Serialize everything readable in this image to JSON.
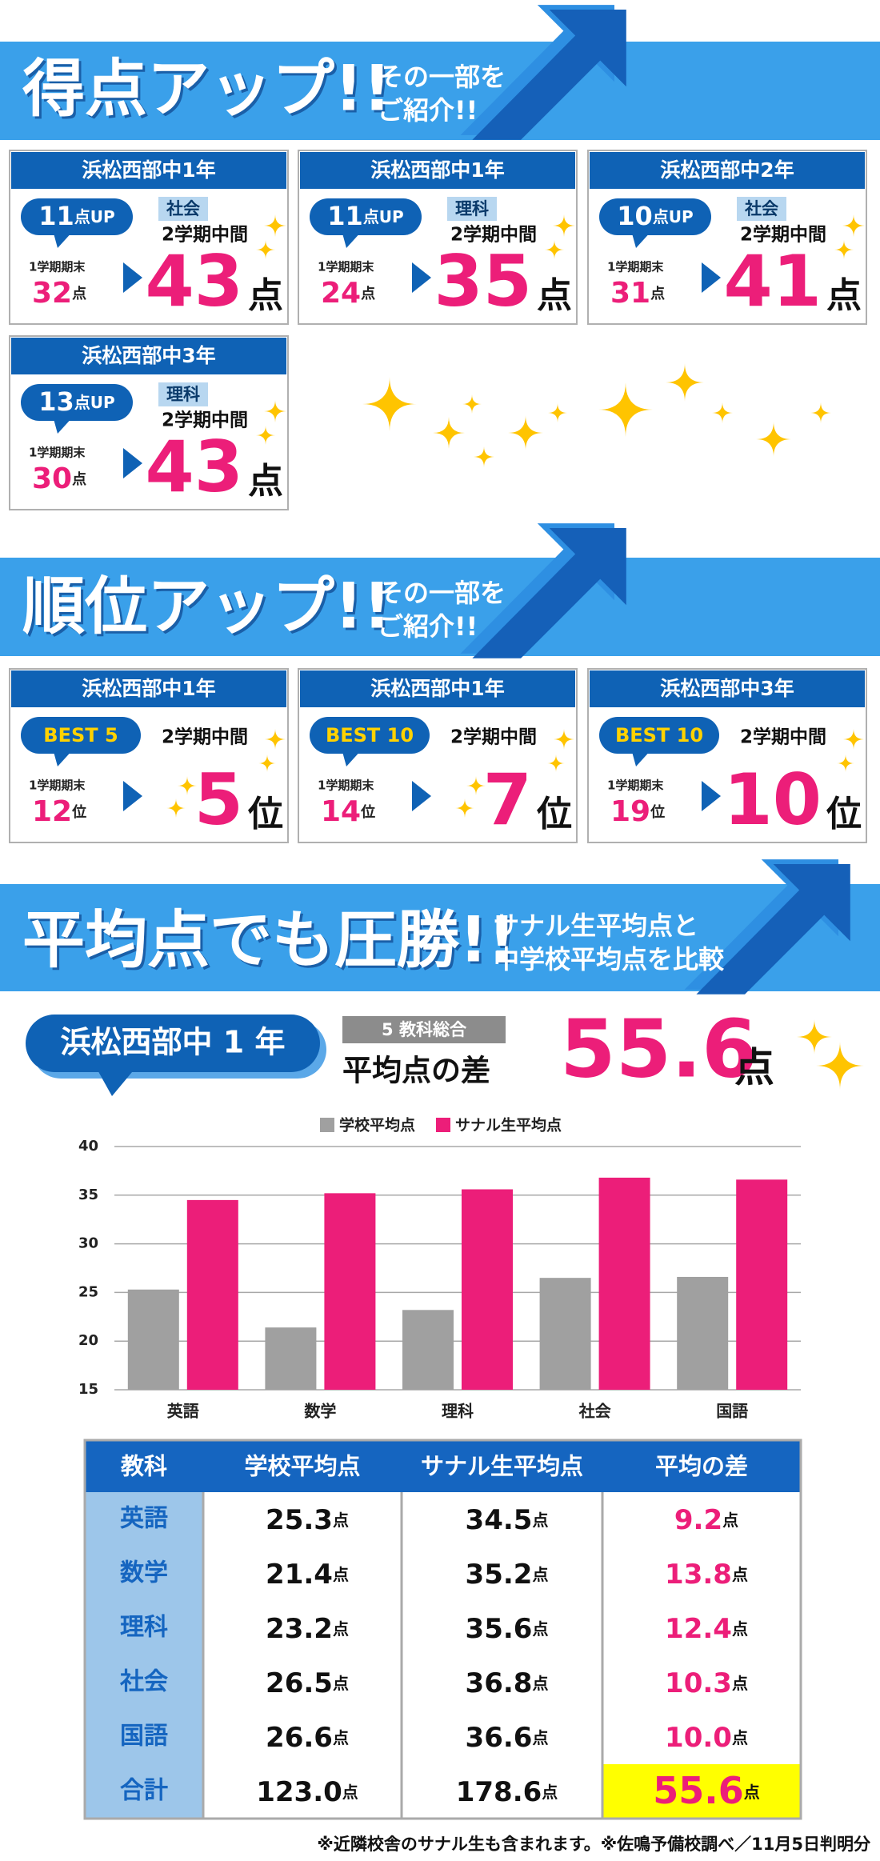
{
  "score_section": {
    "title": "得点アップ!!",
    "subtitle": [
      "その一部を",
      "ご紹介!!"
    ],
    "cards": [
      {
        "school": "浜松西部中1年",
        "up": 11,
        "subject": "社会",
        "term": "2学期中間",
        "before_label": "1学期期末",
        "before": 32,
        "after": 43
      },
      {
        "school": "浜松西部中1年",
        "up": 11,
        "subject": "理科",
        "term": "2学期中間",
        "before_label": "1学期期末",
        "before": 24,
        "after": 35
      },
      {
        "school": "浜松西部中2年",
        "up": 10,
        "subject": "社会",
        "term": "2学期中間",
        "before_label": "1学期期末",
        "before": 31,
        "after": 41
      },
      {
        "school": "浜松西部中3年",
        "up": 13,
        "subject": "理科",
        "term": "2学期中間",
        "before_label": "1学期期末",
        "before": 30,
        "after": 43
      }
    ]
  },
  "units": {
    "point": "点",
    "up": "点UP",
    "rank": "位"
  },
  "rank_section": {
    "title": "順位アップ!!",
    "subtitle": [
      "その一部を",
      "ご紹介!!"
    ],
    "cards": [
      {
        "school": "浜松西部中1年",
        "badge": "BEST 5",
        "term": "2学期中間",
        "before_label": "1学期期末",
        "before": 12,
        "after": 5
      },
      {
        "school": "浜松西部中1年",
        "badge": "BEST 10",
        "term": "2学期中間",
        "before_label": "1学期期末",
        "before": 14,
        "after": 7
      },
      {
        "school": "浜松西部中3年",
        "badge": "BEST 10",
        "term": "2学期中間",
        "before_label": "1学期期末",
        "before": 19,
        "after": 10
      }
    ]
  },
  "average_section": {
    "title": "平均点でも圧勝!!",
    "subtitle": [
      "サナル生平均点と",
      "中学校平均点を比較"
    ],
    "school": "浜松西部中 1 年",
    "badge": "5 教科総合",
    "label": "平均点の差",
    "value": 55.6
  },
  "chart_data": {
    "type": "bar",
    "categories": [
      "英語",
      "数学",
      "理科",
      "社会",
      "国語"
    ],
    "series": [
      {
        "name": "学校平均点",
        "color": "#a0a0a0",
        "values": [
          25.3,
          21.4,
          23.2,
          26.5,
          26.6
        ]
      },
      {
        "name": "サナル生平均点",
        "color": "#ec1e79",
        "values": [
          34.5,
          35.2,
          35.6,
          36.8,
          36.6
        ]
      }
    ],
    "ylim": [
      15,
      40
    ],
    "yticks": [
      15,
      20,
      25,
      30,
      35,
      40
    ],
    "grid": true,
    "legend": "top"
  },
  "table": {
    "header": [
      "教科",
      "学校平均点",
      "サナル生平均点",
      "平均の差"
    ],
    "rows": [
      [
        "英語",
        "25.3",
        "34.5",
        "9.2"
      ],
      [
        "数学",
        "21.4",
        "35.2",
        "13.8"
      ],
      [
        "理科",
        "23.2",
        "35.6",
        "12.4"
      ],
      [
        "社会",
        "26.5",
        "36.8",
        "10.3"
      ],
      [
        "国語",
        "26.6",
        "36.6",
        "10.0"
      ],
      [
        "合計",
        "123.0",
        "178.6",
        "55.6"
      ]
    ]
  },
  "footnote": "※近隣校舎のサナル生も含まれます。※佐鳴予備校調べ／11月5日判明分"
}
